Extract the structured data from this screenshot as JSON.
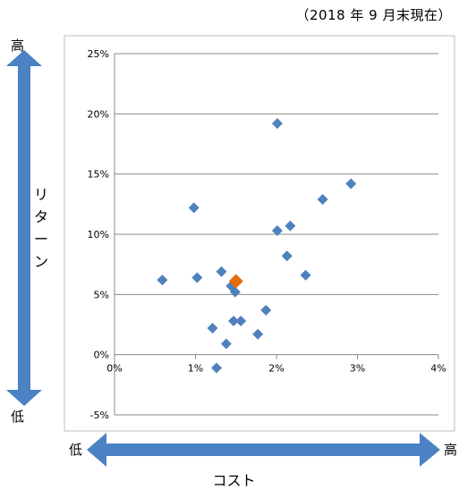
{
  "date_note": "（2018 年 9 月末現在）",
  "y_high": "高",
  "y_low": "低",
  "y_axis_label_chars": [
    "リ",
    "タ",
    "ー",
    "ン"
  ],
  "x_low": "低",
  "x_high": "高",
  "x_axis_label": "コスト",
  "colors": {
    "point": "#4f81bd",
    "highlight": "#e36c09",
    "arrow": "#4a82c4",
    "grid": "#888888"
  },
  "chart_data": {
    "type": "scatter",
    "title": "",
    "xlabel": "コスト",
    "ylabel": "リターン",
    "xlim": [
      0,
      4
    ],
    "ylim": [
      -5,
      25
    ],
    "x_ticks": [
      "0%",
      "1%",
      "2%",
      "3%",
      "4%"
    ],
    "y_ticks": [
      "-5%",
      "0%",
      "5%",
      "10%",
      "15%",
      "20%",
      "25%"
    ],
    "grid": true,
    "series": [
      {
        "points": [
          {
            "x": 0.59,
            "y": 6.2
          },
          {
            "x": 0.98,
            "y": 12.2
          },
          {
            "x": 1.02,
            "y": 6.4
          },
          {
            "x": 1.21,
            "y": 2.2
          },
          {
            "x": 1.26,
            "y": -1.1
          },
          {
            "x": 1.32,
            "y": 6.9
          },
          {
            "x": 1.38,
            "y": 0.9
          },
          {
            "x": 1.44,
            "y": 5.7
          },
          {
            "x": 1.47,
            "y": 2.8
          },
          {
            "x": 1.49,
            "y": 5.2
          },
          {
            "x": 1.56,
            "y": 2.8
          },
          {
            "x": 1.77,
            "y": 1.7
          },
          {
            "x": 1.87,
            "y": 3.7
          },
          {
            "x": 2.01,
            "y": 19.2
          },
          {
            "x": 2.01,
            "y": 10.3
          },
          {
            "x": 2.13,
            "y": 8.2
          },
          {
            "x": 2.17,
            "y": 10.7
          },
          {
            "x": 2.36,
            "y": 6.6
          },
          {
            "x": 2.57,
            "y": 12.9
          },
          {
            "x": 2.92,
            "y": 14.2
          }
        ]
      },
      {
        "highlight": true,
        "points": [
          {
            "x": 1.5,
            "y": 6.1
          }
        ]
      }
    ]
  }
}
